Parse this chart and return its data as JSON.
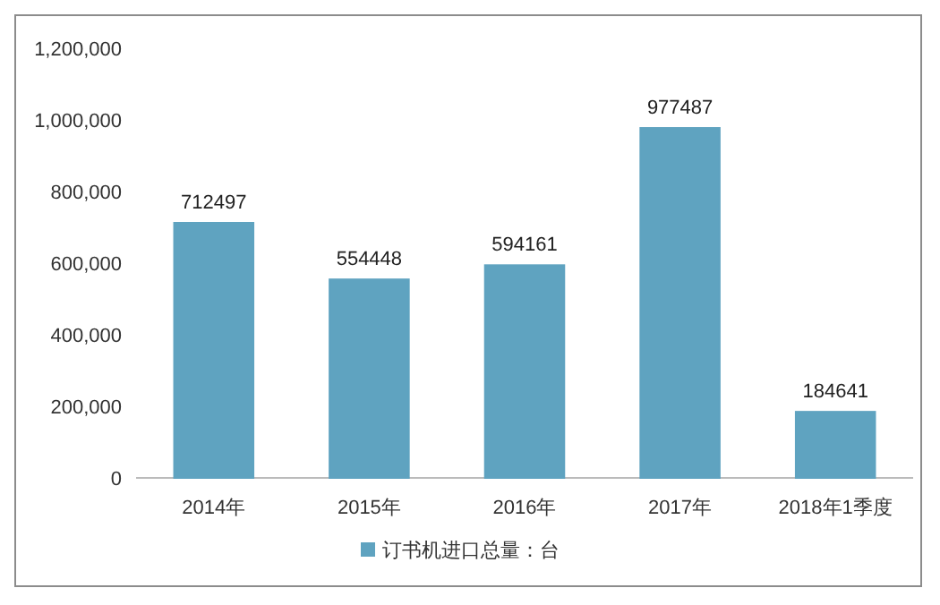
{
  "chart_data": {
    "type": "bar",
    "categories": [
      "2014年",
      "2015年",
      "2016年",
      "2017年",
      "2018年1季度"
    ],
    "series": [
      {
        "name": "订书机进口总量：台",
        "color": "#5fa3c0",
        "values": [
          712497,
          554448,
          594161,
          977487,
          184641
        ]
      }
    ],
    "ylim": [
      0,
      1200000
    ],
    "yticks": [
      {
        "value": 0,
        "label": "0"
      },
      {
        "value": 200000,
        "label": "200,000"
      },
      {
        "value": 400000,
        "label": "400,000"
      },
      {
        "value": 600000,
        "label": "600,000"
      },
      {
        "value": 800000,
        "label": "800,000"
      },
      {
        "value": 1000000,
        "label": "1,000,000"
      },
      {
        "value": 1200000,
        "label": "1,200,000"
      }
    ],
    "data_labels": true,
    "legend": "bottom",
    "grid": false
  }
}
